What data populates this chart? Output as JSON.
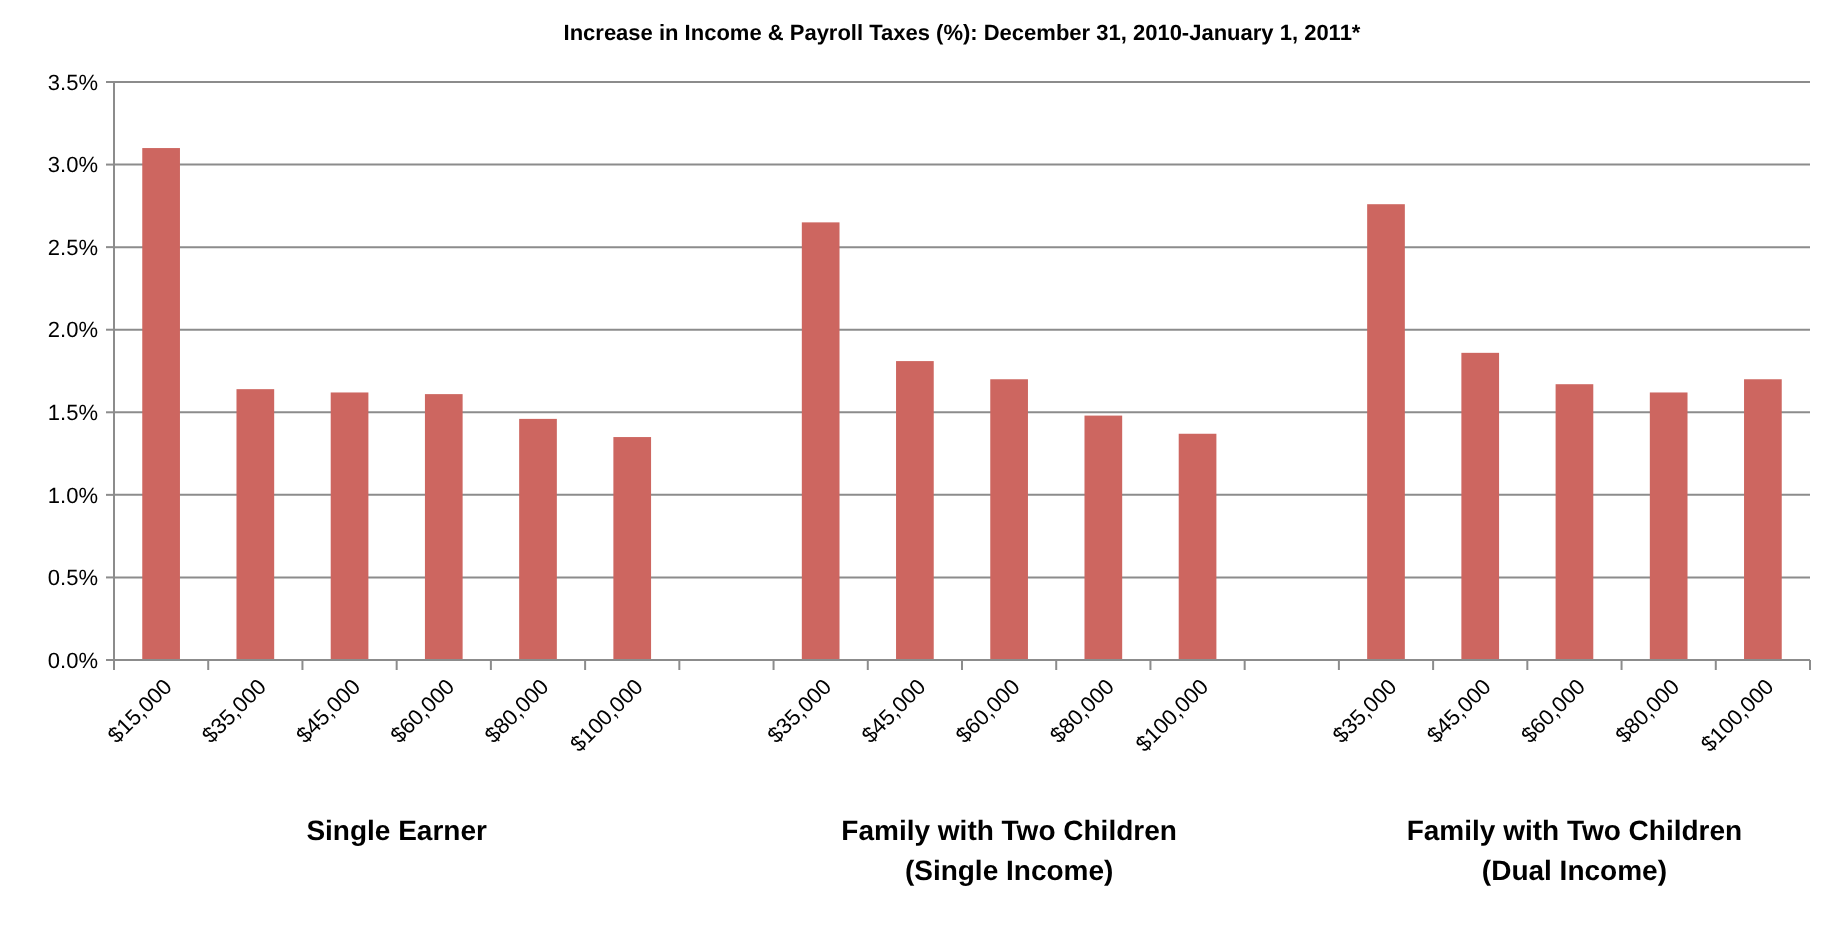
{
  "chart_data": {
    "type": "bar",
    "title": "Increase in Income & Payroll Taxes (%): December 31, 2010-January 1, 2011*",
    "categories": [
      "$15,000",
      "$35,000",
      "$45,000",
      "$60,000",
      "$80,000",
      "$100,000",
      null,
      "$35,000",
      "$45,000",
      "$60,000",
      "$80,000",
      "$100,000",
      null,
      "$35,000",
      "$45,000",
      "$60,000",
      "$80,000",
      "$100,000"
    ],
    "values": [
      3.1,
      1.64,
      1.62,
      1.61,
      1.46,
      1.35,
      null,
      2.65,
      1.81,
      1.7,
      1.48,
      1.37,
      null,
      2.76,
      1.86,
      1.67,
      1.62,
      1.7
    ],
    "color": "#cd6660",
    "ylim": [
      0,
      3.5
    ],
    "yticks": [
      {
        "value": 0,
        "label": "0.0%"
      },
      {
        "value": 0.5,
        "label": "0.5%"
      },
      {
        "value": 1,
        "label": "1.0%"
      },
      {
        "value": 1.5,
        "label": "1.5%"
      },
      {
        "value": 2,
        "label": "2.0%"
      },
      {
        "value": 2.5,
        "label": "2.5%"
      },
      {
        "value": 3,
        "label": "3.0%"
      },
      {
        "value": 3.5,
        "label": "3.5%"
      }
    ],
    "grid": "y",
    "annotations": [
      "Single Earner",
      "Family with Two Children\n(Single Income)",
      "Family with Two Children\n(Dual Income)"
    ]
  }
}
